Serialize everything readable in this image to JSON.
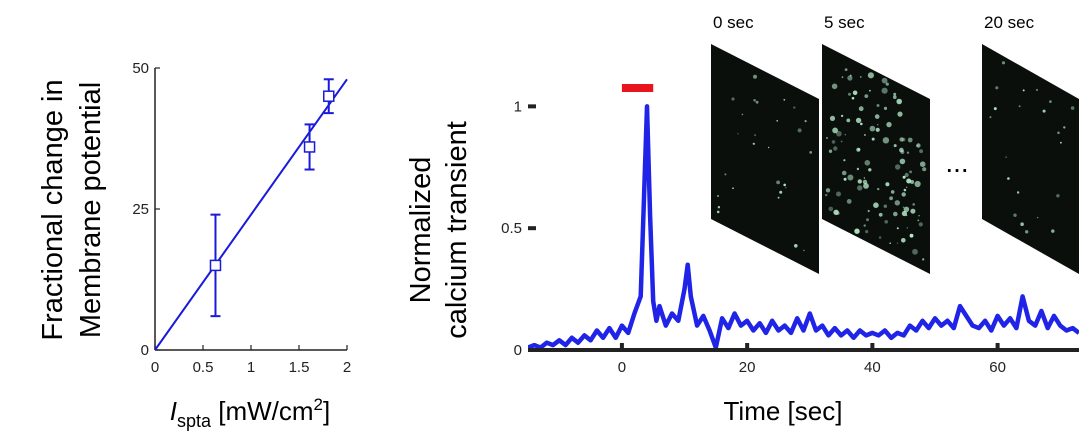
{
  "chart_data": [
    {
      "type": "scatter",
      "title": "",
      "ylabel_lines": [
        "Fractional change in",
        "Membrane potential"
      ],
      "xlabel_main": "I",
      "xlabel_sub": "spta",
      "xlabel_units_pre": " [mW/cm",
      "xlabel_units_sup": "2",
      "xlabel_units_post": "]",
      "xlim": [
        0,
        2
      ],
      "ylim": [
        0,
        50
      ],
      "xticks": [
        "0",
        "0.5",
        "1",
        "1.5",
        "2"
      ],
      "yticks": [
        "0",
        "25",
        "50"
      ],
      "xtick_values": [
        0,
        0.5,
        1,
        1.5,
        2
      ],
      "ytick_values": [
        0,
        25,
        50
      ],
      "points": [
        {
          "x": 0.63,
          "y": 15,
          "err": 9
        },
        {
          "x": 1.61,
          "y": 36,
          "err": 4
        },
        {
          "x": 1.81,
          "y": 45,
          "err": 3
        }
      ],
      "fit_line": {
        "x": [
          0,
          2
        ],
        "y": [
          0,
          48
        ]
      },
      "color": "#1a1adb"
    },
    {
      "type": "line",
      "title": "",
      "ylabel_lines": [
        "Normalized",
        "calcium transient"
      ],
      "xlabel": "Time [sec]",
      "xlim": [
        -15,
        73
      ],
      "ylim": [
        0,
        1.1
      ],
      "xticks": [
        "0",
        "20",
        "40",
        "60"
      ],
      "yticks": [
        "0",
        "0.5",
        "1"
      ],
      "xtick_values": [
        0,
        20,
        40,
        60
      ],
      "ytick_values": [
        0,
        0.5,
        1
      ],
      "stimulus": {
        "start": 0,
        "end": 5,
        "color": "#e8141e"
      },
      "color": "#1f24e6",
      "series": [
        {
          "x": [
            -15,
            -14,
            -13,
            -12,
            -11,
            -10,
            -9,
            -8,
            -7,
            -6,
            -5,
            -4,
            -3,
            -2,
            -1,
            0,
            1,
            2,
            3,
            3.5,
            4,
            4.5,
            5,
            5.5,
            6,
            7,
            8,
            9,
            10,
            10.5,
            11,
            12,
            13,
            14,
            15,
            16,
            17,
            18,
            19,
            20,
            21,
            22,
            23,
            24,
            25,
            26,
            27,
            28,
            29,
            30,
            31,
            32,
            33,
            34,
            35,
            36,
            37,
            38,
            39,
            40,
            41,
            42,
            43,
            44,
            45,
            46,
            47,
            48,
            49,
            50,
            51,
            52,
            53,
            54,
            55,
            56,
            57,
            58,
            59,
            60,
            61,
            62,
            63,
            64,
            65,
            66,
            67,
            68,
            69,
            70,
            71,
            72,
            73
          ],
          "y": [
            0.01,
            0.02,
            0.01,
            0.03,
            0.02,
            0.04,
            0.02,
            0.05,
            0.03,
            0.06,
            0.04,
            0.08,
            0.05,
            0.09,
            0.05,
            0.1,
            0.07,
            0.15,
            0.22,
            0.6,
            1.0,
            0.55,
            0.2,
            0.12,
            0.18,
            0.1,
            0.15,
            0.12,
            0.25,
            0.35,
            0.22,
            0.1,
            0.14,
            0.08,
            0.01,
            0.13,
            0.09,
            0.15,
            0.1,
            0.12,
            0.08,
            0.11,
            0.07,
            0.12,
            0.08,
            0.1,
            0.07,
            0.13,
            0.08,
            0.15,
            0.08,
            0.1,
            0.06,
            0.09,
            0.06,
            0.08,
            0.05,
            0.08,
            0.06,
            0.07,
            0.06,
            0.08,
            0.05,
            0.07,
            0.06,
            0.1,
            0.08,
            0.12,
            0.09,
            0.13,
            0.1,
            0.12,
            0.09,
            0.18,
            0.14,
            0.1,
            0.09,
            0.12,
            0.08,
            0.14,
            0.1,
            0.13,
            0.09,
            0.22,
            0.12,
            0.1,
            0.16,
            0.09,
            0.14,
            0.1,
            0.08,
            0.09,
            0.07
          ]
        }
      ],
      "frames": [
        {
          "label": "0 sec",
          "spots": 0.15
        },
        {
          "label": "5 sec",
          "spots": 1.0
        },
        {
          "label": "20 sec",
          "spots": 0.12
        }
      ],
      "ellipsis": "..."
    }
  ]
}
